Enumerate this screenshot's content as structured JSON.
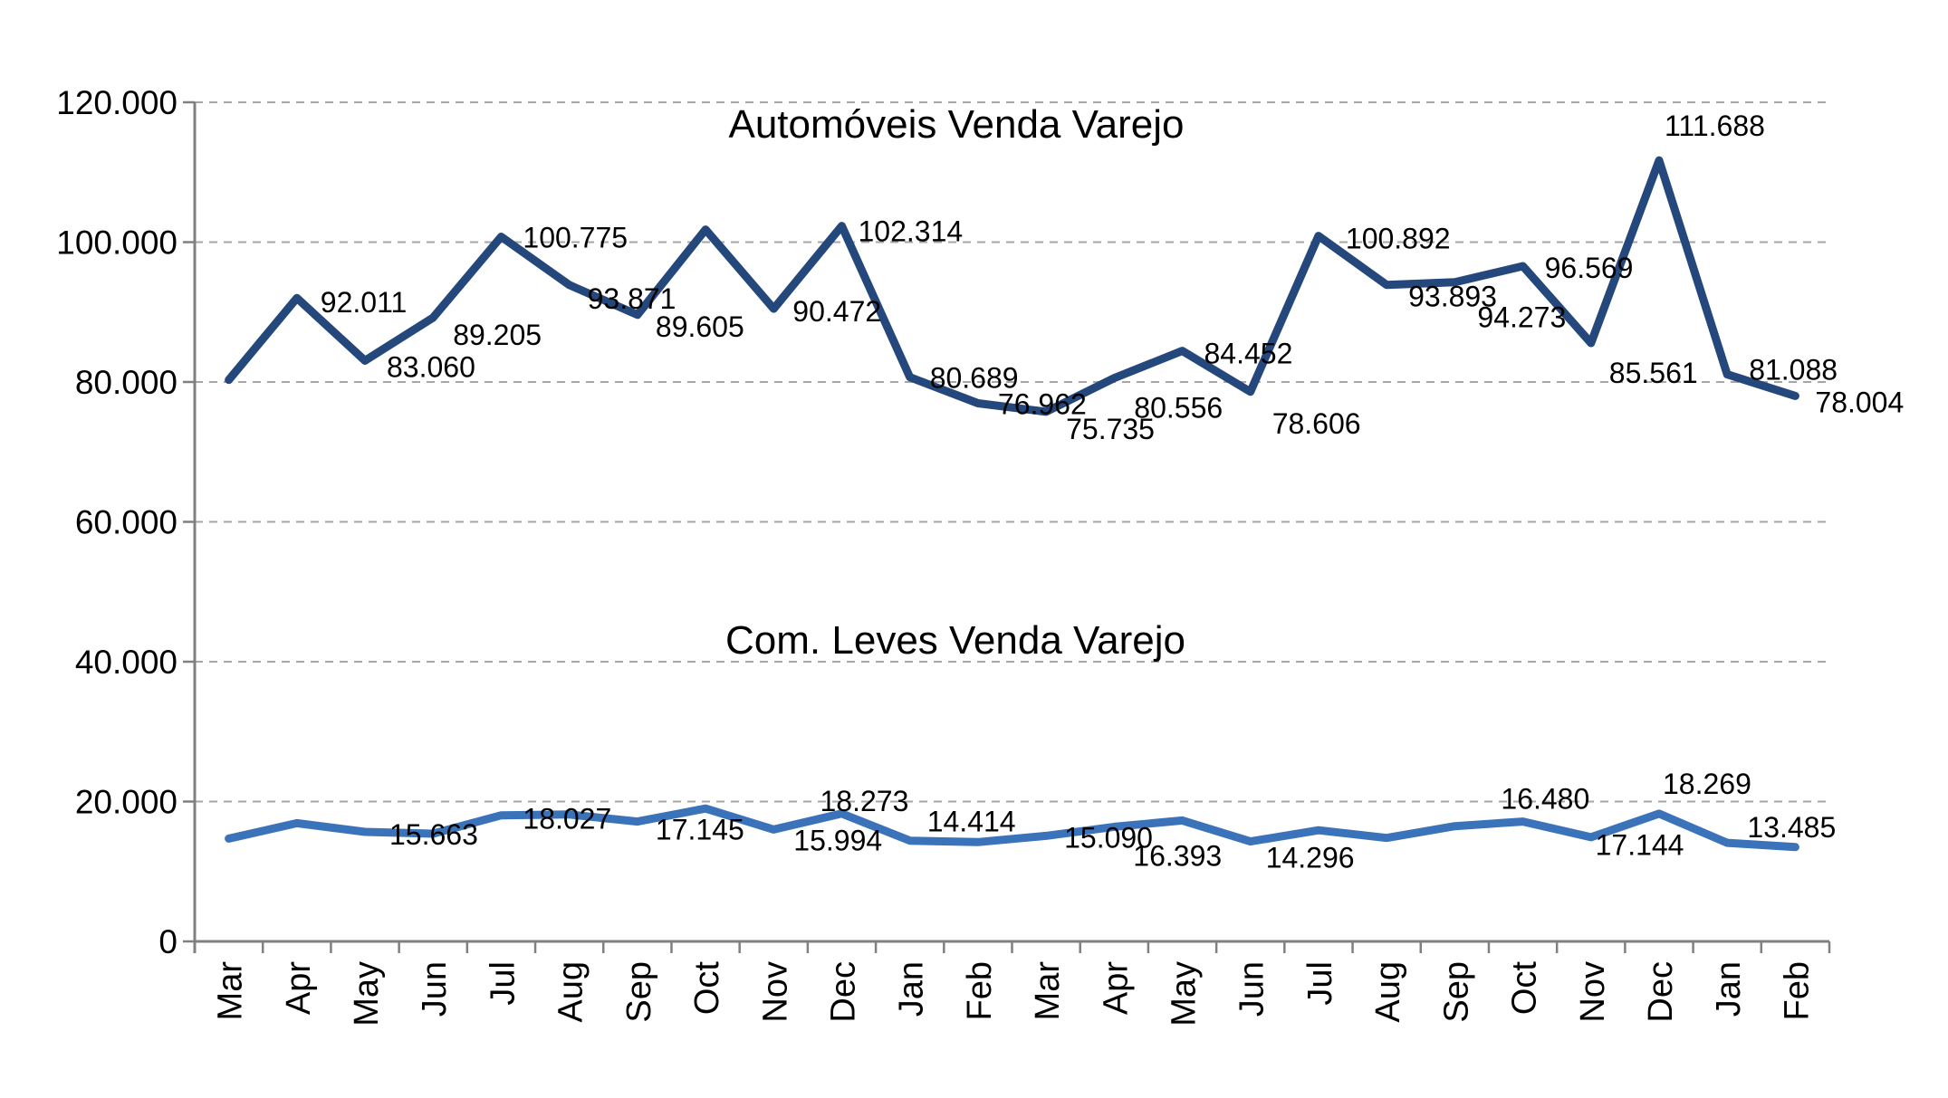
{
  "chart_data": {
    "type": "line",
    "grid": "horizontal-dashed",
    "legend_position": "none",
    "ylim": [
      0,
      120000
    ],
    "y_ticks": [
      {
        "label": "120.000",
        "value": 120000
      },
      {
        "label": "100.000",
        "value": 100000
      },
      {
        "label": "80.000",
        "value": 80000
      },
      {
        "label": "60.000",
        "value": 60000
      },
      {
        "label": "40.000",
        "value": 40000
      },
      {
        "label": "20.000",
        "value": 20000
      },
      {
        "label": "0",
        "value": 0
      }
    ],
    "x_categories": [
      "Mar",
      "Apr",
      "May",
      "Jun",
      "Jul",
      "Aug",
      "Sep",
      "Oct",
      "Nov",
      "Dec",
      "Jan",
      "Feb",
      "Mar",
      "Apr",
      "May",
      "Jun",
      "Jul",
      "Aug",
      "Sep",
      "Oct",
      "Nov",
      "Dec",
      "Jan",
      "Feb"
    ],
    "series": [
      {
        "name": "Automóveis Venda Varejo",
        "color": "#24477C",
        "stroke_width": 9,
        "values": [
          80300,
          92011,
          83060,
          89205,
          100775,
          93871,
          89605,
          101800,
          90472,
          102314,
          80689,
          76962,
          75735,
          80556,
          84452,
          78606,
          100892,
          93893,
          94273,
          96569,
          85561,
          111688,
          81088,
          78004
        ],
        "data_labels": [
          null,
          "92.011",
          "83.060",
          "89.205",
          "100.775",
          "93.871",
          "89.605",
          null,
          "90.472",
          "102.314",
          "80.689",
          "76.962",
          "75.735",
          "80.556",
          "84.452",
          "78.606",
          "100.892",
          "93.893",
          "94.273",
          "96.569",
          "85.561",
          "111.688",
          "81.088",
          "78.004"
        ],
        "label_offsets": {
          "1": [
            26,
            16
          ],
          "2": [
            24,
            18
          ],
          "3": [
            22,
            30
          ],
          "4": [
            24,
            12
          ],
          "5": [
            20,
            26
          ],
          "6": [
            20,
            24
          ],
          "8": [
            21,
            14
          ],
          "9": [
            18,
            17
          ],
          "10": [
            22,
            12
          ],
          "11": [
            22,
            12
          ],
          "12": [
            22,
            30
          ],
          "13": [
            22,
            44
          ],
          "14": [
            24,
            14
          ],
          "15": [
            24,
            46
          ],
          "16": [
            30,
            14
          ],
          "17": [
            24,
            24
          ],
          "18": [
            25,
            50
          ],
          "19": [
            24,
            13
          ],
          "20": [
            20,
            44
          ],
          "21": [
            6,
            -27
          ],
          "22": [
            24,
            6
          ],
          "23": [
            22,
            18
          ]
        }
      },
      {
        "name": "Com. Leves Venda Varejo",
        "color": "#3B73BB",
        "stroke_width": 9,
        "values": [
          14700,
          16900,
          15663,
          15400,
          18027,
          18150,
          17145,
          19000,
          15994,
          18273,
          14414,
          14200,
          15090,
          16393,
          17300,
          14296,
          15900,
          14800,
          16480,
          17144,
          14900,
          18269,
          14100,
          13485
        ],
        "data_labels": [
          null,
          null,
          "15.663",
          null,
          "18.027",
          null,
          "17.145",
          null,
          "15.994",
          "18.273",
          "14.414",
          null,
          "15.090",
          "16.393",
          null,
          "14.296",
          null,
          null,
          "16.480",
          "17.144",
          null,
          "18.269",
          null,
          "13.485"
        ],
        "label_offsets": {
          "2": [
            27,
            14
          ],
          "4": [
            24,
            15
          ],
          "6": [
            20,
            20
          ],
          "8": [
            22,
            23
          ],
          "9": [
            -24,
            -3
          ],
          "10": [
            19,
            -10
          ],
          "12": [
            20,
            13
          ],
          "13": [
            21,
            43
          ],
          "15": [
            17,
            29
          ],
          "18": [
            51,
            -19
          ],
          "19": [
            80,
            37
          ],
          "21": [
            4,
            -22
          ],
          "23": [
            -53,
            -11
          ]
        }
      }
    ],
    "colors": {
      "gridline": "#A6A6A6",
      "axis": "#808080",
      "label_text": "#000000"
    }
  }
}
